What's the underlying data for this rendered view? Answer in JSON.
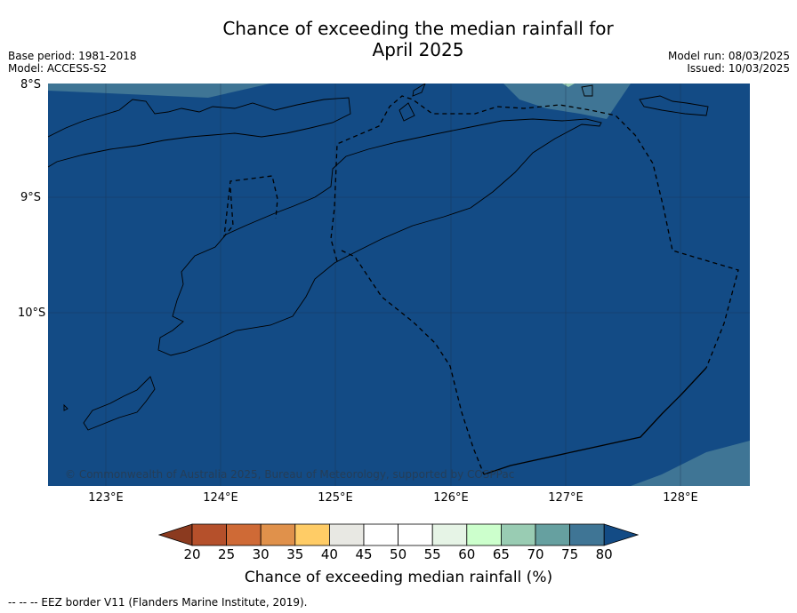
{
  "title_line1": "Chance of exceeding the median rainfall for",
  "title_line2": "April 2025",
  "meta_left": {
    "base_period": "Base period: 1981-2018",
    "model": "Model: ACCESS-S2"
  },
  "meta_right": {
    "model_run": "Model run: 08/03/2025",
    "issued": "Issued: 10/03/2025"
  },
  "lat_labels": [
    "8°S",
    "9°S",
    "10°S"
  ],
  "lon_labels": [
    "123°E",
    "124°E",
    "125°E",
    "126°E",
    "127°E",
    "128°E"
  ],
  "copyright": "© Commonwealth of Australia 2025, Bureau of Meteorology, supported by COSPPac",
  "colorbar": {
    "title": "Chance of exceeding median rainfall (%)",
    "ticks": [
      "20",
      "25",
      "30",
      "35",
      "40",
      "45",
      "50",
      "55",
      "60",
      "65",
      "70",
      "75",
      "80"
    ],
    "colors": [
      "#8b3a1f",
      "#b5502b",
      "#cf6a36",
      "#e0914b",
      "#ffcc66",
      "#e8e8e3",
      "#ffffff",
      "#ffffff",
      "#e6f4e6",
      "#ccffcc",
      "#99ccb3",
      "#66a0a0",
      "#3f7595",
      "#134b85"
    ]
  },
  "map_fill_color": "#134b85",
  "legend_note": "--  --  -- EEZ border V11 (Flanders Marine Institute, 2019)."
}
